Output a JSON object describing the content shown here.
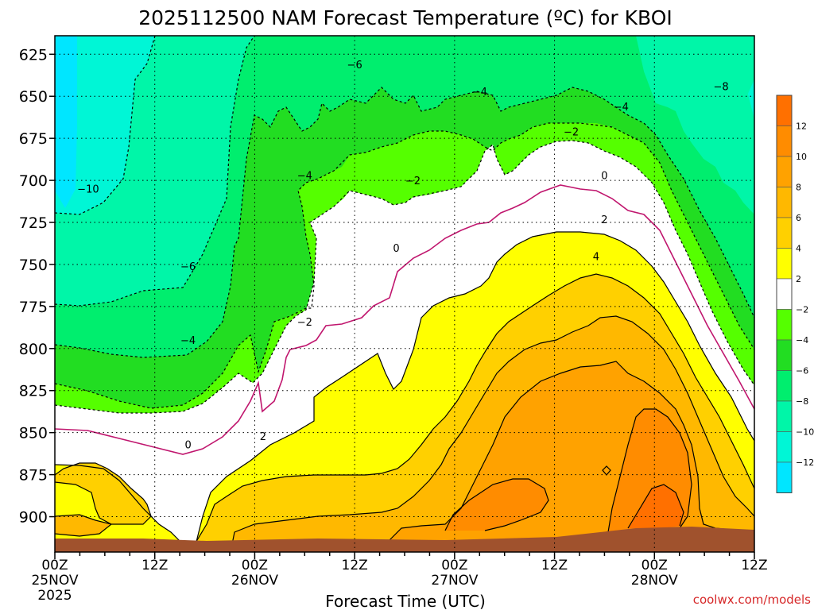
{
  "chart_data": {
    "type": "heatmap",
    "title": "2025112500 NAM Forecast Temperature (ºC) for KBOI",
    "xlabel": "Forecast Time (UTC)",
    "credit": "coolwx.com/models",
    "y_axis": {
      "ticks": [
        625,
        650,
        675,
        700,
        725,
        750,
        775,
        800,
        825,
        850,
        875,
        900
      ],
      "range": [
        614,
        921
      ],
      "inverted": true,
      "grid": true
    },
    "x_axis": {
      "range_hours": [
        0,
        84
      ],
      "grid": true,
      "ticks": [
        {
          "hour": 0,
          "lines": [
            "00Z",
            "25NOV",
            "2025"
          ]
        },
        {
          "hour": 12,
          "lines": [
            "12Z"
          ]
        },
        {
          "hour": 24,
          "lines": [
            "00Z",
            "26NOV"
          ]
        },
        {
          "hour": 36,
          "lines": [
            "12Z"
          ]
        },
        {
          "hour": 48,
          "lines": [
            "00Z",
            "27NOV"
          ]
        },
        {
          "hour": 60,
          "lines": [
            "12Z"
          ]
        },
        {
          "hour": 72,
          "lines": [
            "00Z",
            "28NOV"
          ]
        },
        {
          "hour": 84,
          "lines": [
            "12Z"
          ]
        }
      ]
    },
    "colorbar": {
      "labels": [
        "12",
        "10",
        "8",
        "6",
        "4",
        "2",
        "−2",
        "−4",
        "−6",
        "−8",
        "−10",
        "−12"
      ],
      "bins": [
        {
          "range": "12+",
          "color": "#ff7000"
        },
        {
          "range": "10 to 12",
          "color": "#ff8c00"
        },
        {
          "range": "8 to 10",
          "color": "#ffa200"
        },
        {
          "range": "6 to 8",
          "color": "#ffb800"
        },
        {
          "range": "4 to 6",
          "color": "#ffd000"
        },
        {
          "range": "2 to 4",
          "color": "#ffff00"
        },
        {
          "range": "-2 to 2",
          "color": "#ffffff"
        },
        {
          "range": "-4 to -2",
          "color": "#55ff00"
        },
        {
          "range": "-6 to -4",
          "color": "#22dd22"
        },
        {
          "range": "-8 to -6",
          "color": "#00ee6e"
        },
        {
          "range": "-10 to -8",
          "color": "#00f6a8"
        },
        {
          "range": "-12 to -10",
          "color": "#00f6d6"
        },
        {
          "range": "below -12",
          "color": "#00e6ff"
        }
      ]
    },
    "ground_color": "#a0522d",
    "contour_labels": [
      {
        "text": "-10",
        "hour": 4,
        "p": 705
      },
      {
        "text": "-8",
        "hour": 80,
        "p": 644
      },
      {
        "text": "-6",
        "hour": 36,
        "p": 631
      },
      {
        "text": "-6",
        "hour": 16,
        "p": 751
      },
      {
        "text": "-4",
        "hour": 51,
        "p": 647
      },
      {
        "text": "-4",
        "hour": 68,
        "p": 656
      },
      {
        "text": "-4",
        "hour": 30,
        "p": 697
      },
      {
        "text": "-4",
        "hour": 16,
        "p": 795
      },
      {
        "text": "-2",
        "hour": 62,
        "p": 671
      },
      {
        "text": "-2",
        "hour": 43,
        "p": 700
      },
      {
        "text": "-2",
        "hour": 30,
        "p": 784
      },
      {
        "text": "0",
        "hour": 66,
        "p": 697
      },
      {
        "text": "0",
        "hour": 41,
        "p": 740
      },
      {
        "text": "0",
        "hour": 16,
        "p": 857
      },
      {
        "text": "2",
        "hour": 66,
        "p": 723
      },
      {
        "text": "2",
        "hour": 25,
        "p": 852
      },
      {
        "text": "4",
        "hour": 65,
        "p": 745
      }
    ]
  }
}
